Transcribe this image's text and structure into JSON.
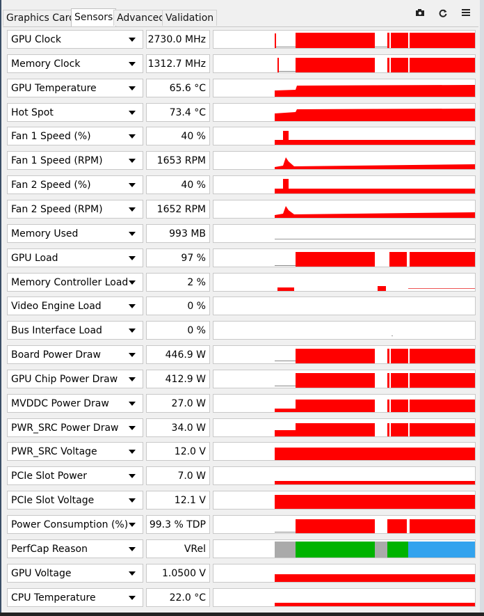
{
  "tabs": [
    {
      "label": "Graphics Card",
      "active": false
    },
    {
      "label": "Sensors",
      "active": true
    },
    {
      "label": "Advanced",
      "active": false
    },
    {
      "label": "Validation",
      "active": false
    }
  ],
  "toolbar": {
    "camera_icon": "camera-icon",
    "refresh_icon": "refresh-icon",
    "menu_icon": "hamburger-menu-icon"
  },
  "colors": {
    "graph_red": "#ff0000",
    "perfcap_gray": "#aaaaaa",
    "perfcap_green": "#00b300",
    "perfcap_blue": "#33a3ee"
  },
  "sensors": [
    {
      "name": "GPU Clock",
      "value": "2730.0 MHz"
    },
    {
      "name": "Memory Clock",
      "value": "1312.7 MHz"
    },
    {
      "name": "GPU Temperature",
      "value": "65.6 °C"
    },
    {
      "name": "Hot Spot",
      "value": "73.4 °C"
    },
    {
      "name": "Fan 1 Speed (%)",
      "value": "40 %"
    },
    {
      "name": "Fan 1 Speed (RPM)",
      "value": "1653 RPM"
    },
    {
      "name": "Fan 2 Speed (%)",
      "value": "40 %"
    },
    {
      "name": "Fan 2 Speed (RPM)",
      "value": "1652 RPM"
    },
    {
      "name": "Memory Used",
      "value": "993 MB"
    },
    {
      "name": "GPU Load",
      "value": "97 %"
    },
    {
      "name": "Memory Controller Load",
      "value": "2 %"
    },
    {
      "name": "Video Engine Load",
      "value": "0 %"
    },
    {
      "name": "Bus Interface Load",
      "value": "0 %"
    },
    {
      "name": "Board Power Draw",
      "value": "446.9 W"
    },
    {
      "name": "GPU Chip Power Draw",
      "value": "412.9 W"
    },
    {
      "name": "MVDDC Power Draw",
      "value": "27.0 W"
    },
    {
      "name": "PWR_SRC Power Draw",
      "value": "34.0 W"
    },
    {
      "name": "PWR_SRC Voltage",
      "value": "12.0 V"
    },
    {
      "name": "PCIe Slot Power",
      "value": "7.0 W"
    },
    {
      "name": "PCIe Slot Voltage",
      "value": "12.1 V"
    },
    {
      "name": "Power Consumption (%)",
      "value": "99.3 % TDP"
    },
    {
      "name": "PerfCap Reason",
      "value": "VRel"
    },
    {
      "name": "GPU Voltage",
      "value": "1.0500 V"
    },
    {
      "name": "CPU Temperature",
      "value": "22.0 °C"
    }
  ]
}
